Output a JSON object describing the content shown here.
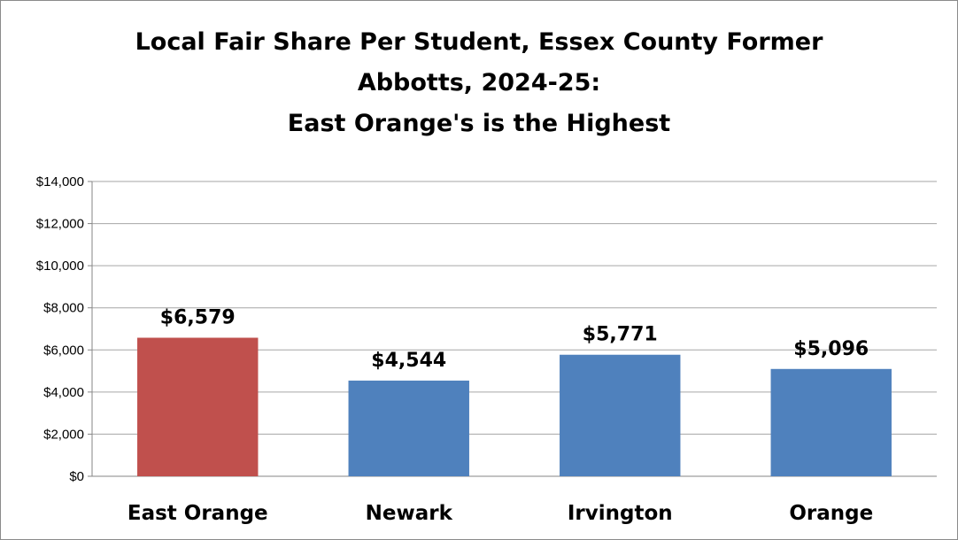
{
  "chart_data": {
    "type": "bar",
    "title_lines": [
      "Local Fair Share Per Student, Essex County Former",
      "Abbotts, 2024-25:",
      "East Orange's is the Highest"
    ],
    "categories": [
      "East Orange",
      "Newark",
      "Irvington",
      "Orange"
    ],
    "values": [
      6579,
      4544,
      5771,
      5096
    ],
    "data_labels": [
      "$6,579",
      "$4,544",
      "$5,771",
      "$5,096"
    ],
    "bar_colors": [
      "#c0504d",
      "#4f81bd",
      "#4f81bd",
      "#4f81bd"
    ],
    "ylim": [
      0,
      14000
    ],
    "yticks": [
      0,
      2000,
      4000,
      6000,
      8000,
      10000,
      12000,
      14000
    ],
    "ytick_labels": [
      "$0",
      "$2,000",
      "$4,000",
      "$6,000",
      "$8,000",
      "$10,000",
      "$12,000",
      "$14,000"
    ],
    "xlabel": "",
    "ylabel": "",
    "grid": true,
    "legend": "none"
  }
}
